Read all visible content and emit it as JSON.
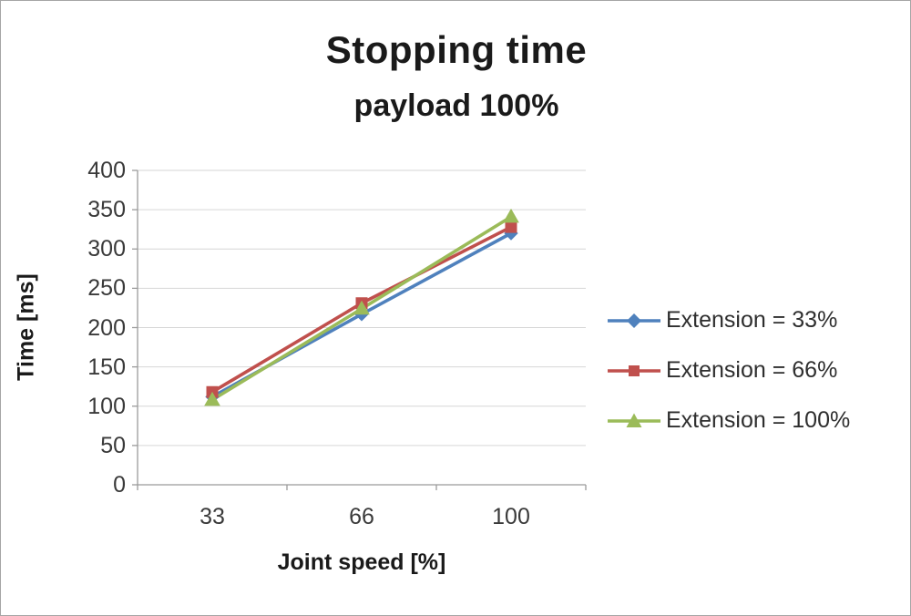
{
  "chart_data": {
    "type": "line",
    "title": "Stopping time",
    "subtitle": "payload 100%",
    "xlabel": "Joint speed [%]",
    "ylabel": "Time [ms]",
    "categories": [
      "33",
      "66",
      "100"
    ],
    "series": [
      {
        "name": "Extension = 33%",
        "color": "#4F81BD",
        "marker": "diamond",
        "values": [
          112,
          217,
          320
        ]
      },
      {
        "name": "Extension = 66%",
        "color": "#C0504D",
        "marker": "square",
        "values": [
          118,
          231,
          328
        ]
      },
      {
        "name": "Extension = 100%",
        "color": "#9BBB59",
        "marker": "triangle",
        "values": [
          108,
          224,
          341
        ]
      }
    ],
    "ylim": [
      0,
      400
    ],
    "ytick_step": 50,
    "grid": true,
    "legend_position": "right"
  }
}
